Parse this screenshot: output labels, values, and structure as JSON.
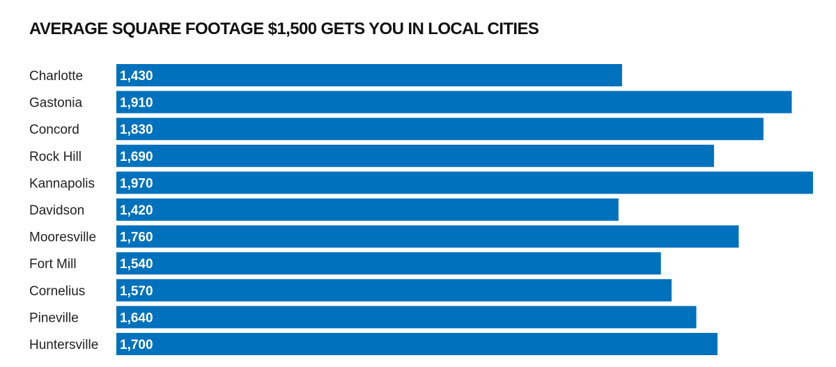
{
  "chart_data": {
    "type": "bar",
    "orientation": "horizontal",
    "title": "AVERAGE SQUARE FOOTAGE $1,500 GETS YOU IN LOCAL CITIES",
    "xlabel": "",
    "ylabel": "",
    "categories": [
      "Charlotte",
      "Gastonia",
      "Concord",
      "Rock Hill",
      "Kannapolis",
      "Davidson",
      "Mooresville",
      "Fort Mill",
      "Cornelius",
      "Pineville",
      "Huntersville"
    ],
    "values": [
      1430,
      1910,
      1830,
      1690,
      1970,
      1420,
      1760,
      1540,
      1570,
      1640,
      1700
    ],
    "value_labels": [
      "1,430",
      "1,910",
      "1,830",
      "1,690",
      "1,970",
      "1,420",
      "1,760",
      "1,540",
      "1,570",
      "1,640",
      "1,700"
    ],
    "xlim": [
      0,
      1970
    ],
    "grid": false,
    "legend": "none",
    "bar_color": "#0071bc"
  }
}
